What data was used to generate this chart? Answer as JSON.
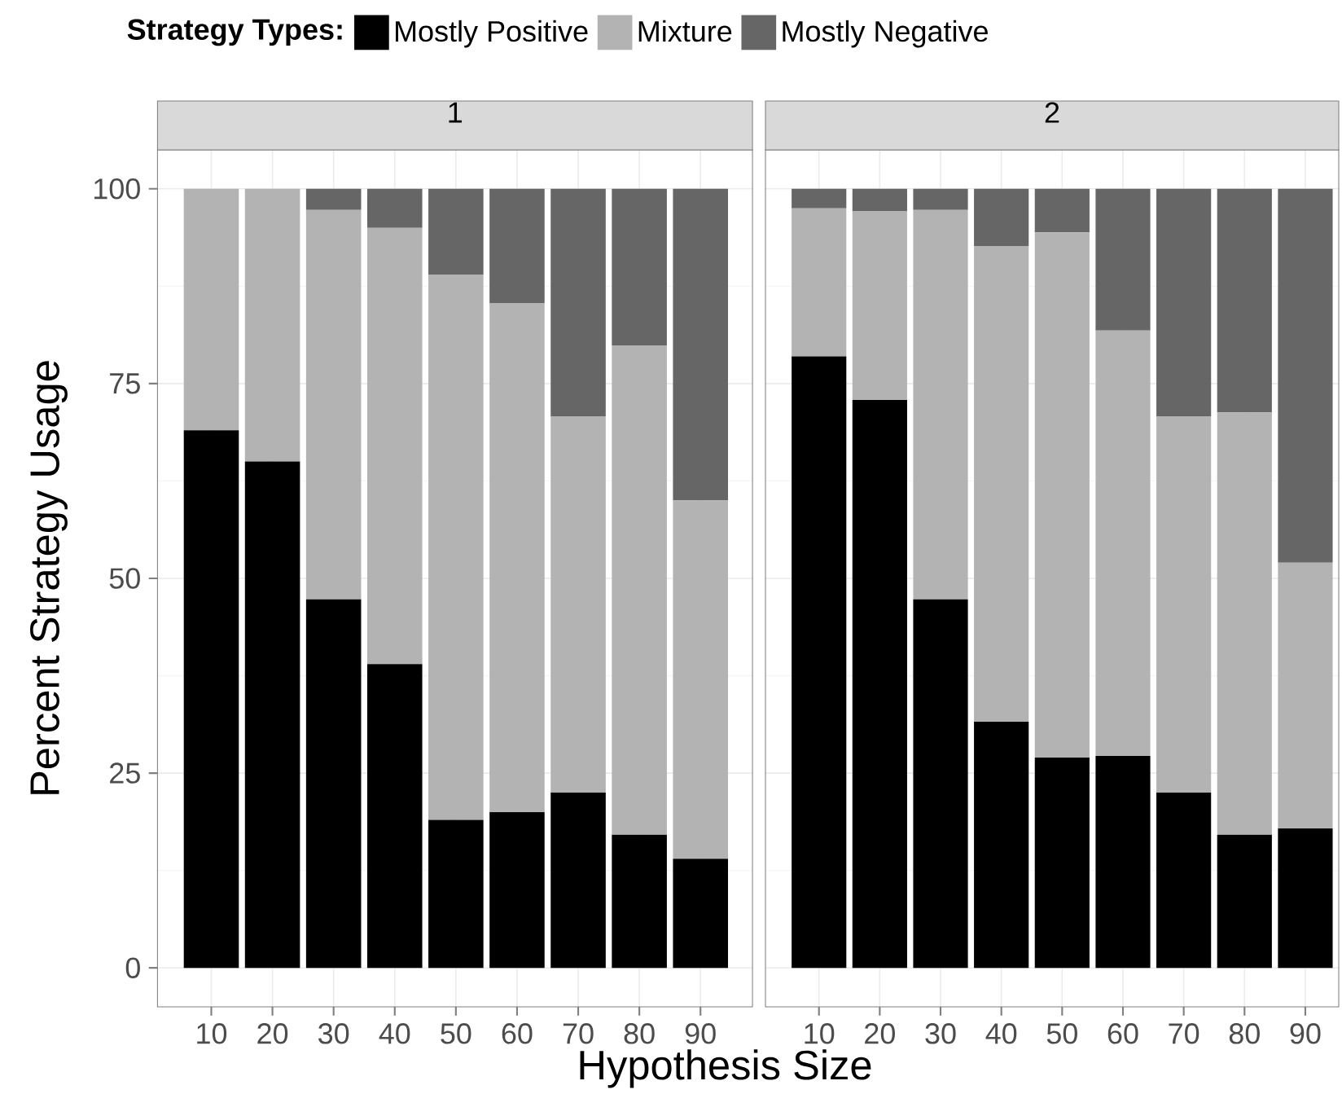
{
  "chart_data": [
    {
      "type": "bar",
      "title": "1",
      "xlabel": "Hypothesis Size",
      "ylabel": "Percent Strategy Usage",
      "legend_title": "Strategy Types:",
      "legend": "top",
      "stacked": true,
      "grid": true,
      "categories": [
        "10",
        "20",
        "30",
        "40",
        "50",
        "60",
        "70",
        "80",
        "90"
      ],
      "ylim": [
        -5,
        105
      ],
      "yticks": [
        0,
        25,
        50,
        75,
        100
      ],
      "series": [
        {
          "name": "Mostly Positive",
          "color": "#000000",
          "values": [
            69,
            65,
            47.3,
            39,
            19,
            20,
            22.5,
            17.1,
            14
          ]
        },
        {
          "name": "Mixture",
          "color": "#b3b3b3",
          "values": [
            31,
            35,
            50,
            56,
            70,
            65.3,
            48.3,
            62.8,
            46
          ]
        },
        {
          "name": "Mostly Negative",
          "color": "#666666",
          "values": [
            0,
            0,
            2.7,
            5,
            11,
            14.7,
            29.2,
            20.1,
            40
          ]
        }
      ]
    },
    {
      "type": "bar",
      "title": "2",
      "stacked": true,
      "grid": true,
      "tick_labels": "x",
      "categories": [
        "10",
        "20",
        "30",
        "40",
        "50",
        "60",
        "70",
        "80",
        "90"
      ],
      "ylim": [
        -5,
        105
      ],
      "yticks": [
        0,
        25,
        50,
        75,
        100
      ],
      "series": [
        {
          "color": "#000000",
          "values": [
            78.5,
            72.9,
            47.3,
            31.6,
            27,
            27.2,
            22.5,
            17.1,
            17.9
          ]
        },
        {
          "color": "#b3b3b3",
          "values": [
            19,
            24.2,
            50,
            61,
            67.4,
            54.6,
            48.3,
            54.2,
            34.1
          ]
        },
        {
          "color": "#666666",
          "values": [
            2.5,
            2.9,
            2.7,
            7.4,
            5.6,
            18.2,
            29.2,
            28.7,
            48
          ]
        }
      ]
    }
  ]
}
